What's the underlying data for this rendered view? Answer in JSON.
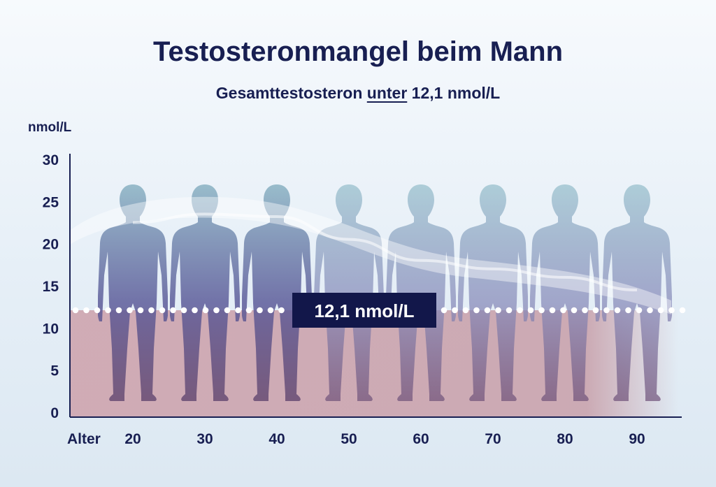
{
  "chart_data": {
    "type": "area",
    "title": "Testosteronmangel beim Mann",
    "subtitle_parts": [
      "Gesamttestosteron",
      "unter",
      "12,1 nmol/L"
    ],
    "ylabel": "nmol/L",
    "xlabel": "Alter",
    "ylim": [
      0,
      30
    ],
    "y_ticks": [
      0,
      5,
      10,
      15,
      20,
      25,
      30
    ],
    "x_ticks": [
      20,
      30,
      40,
      50,
      60,
      70,
      80,
      90
    ],
    "series": [
      {
        "name": "Gesamttestosteron",
        "x": [
          20,
          30,
          40,
          50,
          60,
          70,
          80,
          90
        ],
        "values": [
          22.5,
          23.5,
          23.2,
          20.5,
          18.0,
          17.0,
          16.0,
          14.5
        ]
      }
    ],
    "threshold": {
      "value": 12.1,
      "label": "12,1 nmol/L"
    },
    "colors": {
      "axis": "#181f52",
      "deficit_zone": "#c9a3ad",
      "label_box": "#12174a",
      "figure": "#6e6aa1"
    }
  }
}
